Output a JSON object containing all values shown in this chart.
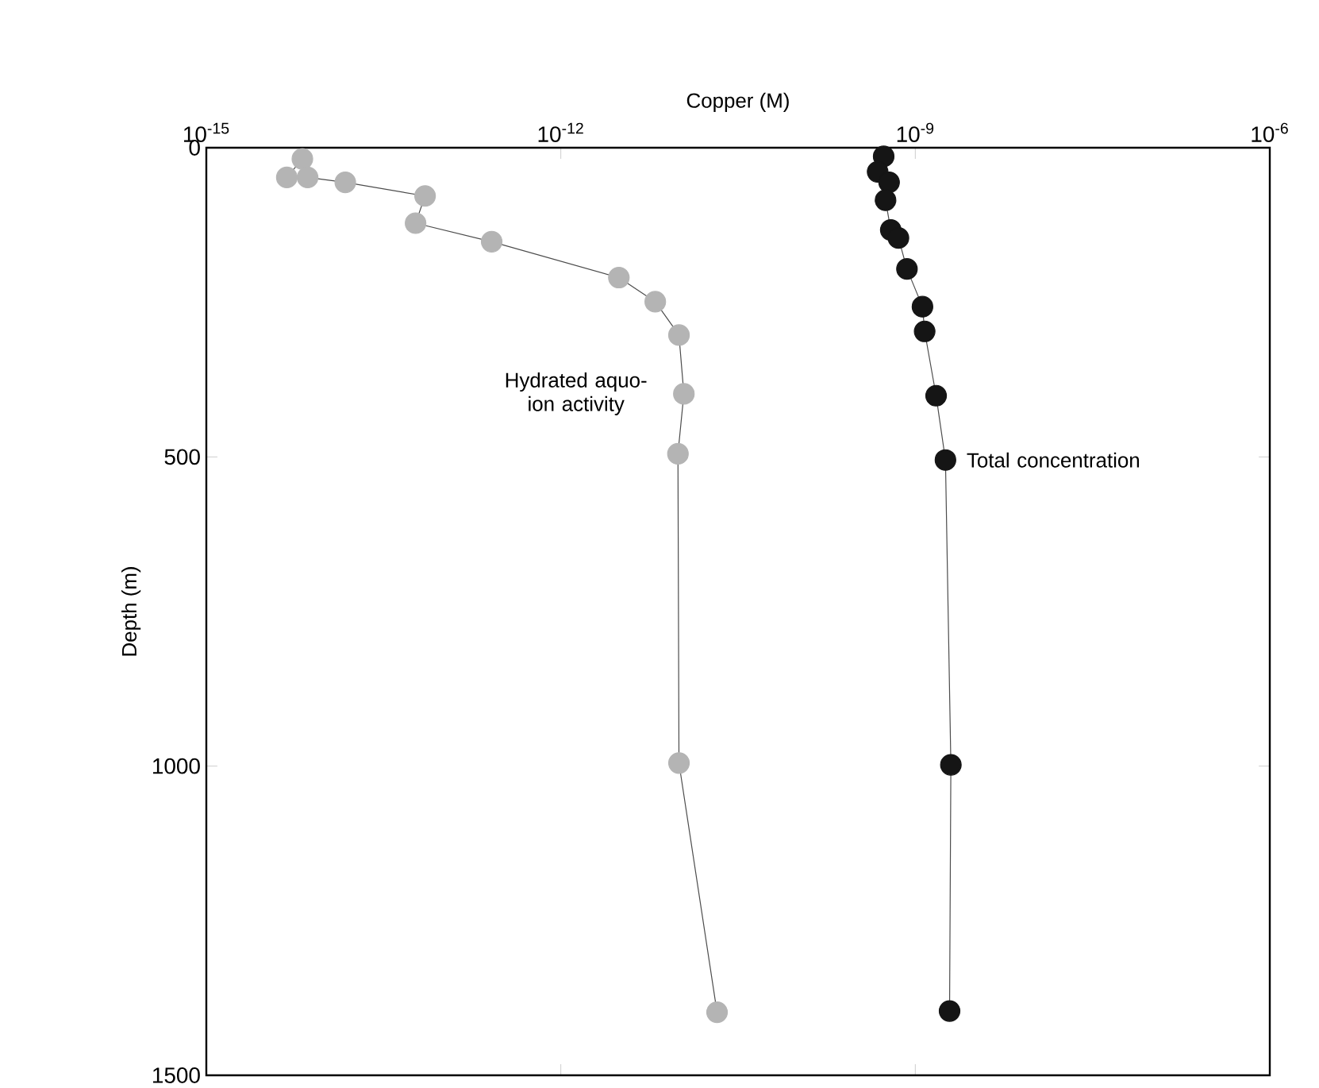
{
  "chart_data": {
    "type": "line",
    "xlabel": "Copper (M)",
    "ylabel": "Depth (m)",
    "log": "x",
    "xlim": [
      1e-15,
      1e-06
    ],
    "ylim": [
      1500,
      0
    ],
    "xticks": [
      {
        "value": 1e-15,
        "label": "10$^{-15}$"
      },
      {
        "value": 1e-12,
        "label": "10$^{-12}$"
      },
      {
        "value": 1e-09,
        "label": "10$^{-9}$"
      },
      {
        "value": 1e-06,
        "label": "10$^{-6}$"
      }
    ],
    "yticks": [
      0,
      500,
      1000,
      1500
    ],
    "grid": false,
    "legend": false,
    "marker": "circle",
    "line_style": "solid",
    "series": [
      {
        "name": "Hydrated aquo-ion activity",
        "color": "#b4b4b4",
        "x": [
          6.5e-15,
          4.8e-15,
          7.2e-15,
          1.5e-14,
          7.1e-14,
          5.9e-14,
          2.6e-13,
          3.1e-12,
          6.3e-12,
          1e-11,
          1.1e-11,
          9.8e-12,
          1e-11,
          2.1e-11
        ],
        "values": [
          18,
          48,
          48,
          56,
          78,
          122,
          152,
          210,
          249,
          303,
          398,
          495,
          995,
          1398
        ]
      },
      {
        "name": "Total concentration",
        "color": "#151515",
        "x": [
          5.4e-10,
          4.8e-10,
          6e-10,
          5.6e-10,
          6.2e-10,
          7.2e-10,
          8.5e-10,
          1.15e-09,
          1.2e-09,
          1.5e-09,
          1.8e-09,
          2e-09,
          1.95e-09
        ],
        "values": [
          14,
          39,
          56,
          85,
          133,
          146,
          196,
          257,
          297,
          401,
          505,
          998,
          1396
        ]
      }
    ]
  }
}
